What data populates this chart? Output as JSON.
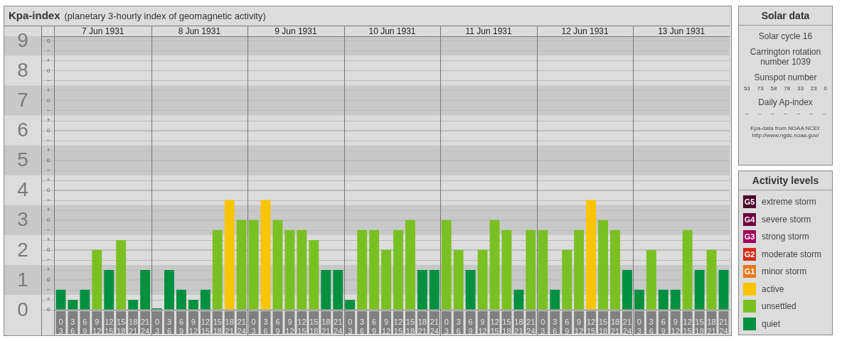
{
  "chart_data": {
    "type": "bar",
    "title": "Kpa-index",
    "subtitle": "(planetary 3-hourly index of geomagnetic activity)",
    "legend_title": "Activity levels",
    "legend": "right",
    "stacked": true,
    "grid": "y",
    "categories": [
      "0\n3",
      "3\n6",
      "6\n9",
      "9\n12",
      "12\n15",
      "15\n18",
      "18\n21",
      "21\n24",
      "0\n3",
      "3\n6",
      "6\n9",
      "9\n12",
      "12\n15",
      "15\n18",
      "18\n21",
      "21\n24",
      "0\n3",
      "3\n6",
      "6\n9",
      "9\n12",
      "12\n15",
      "15\n18",
      "18\n21",
      "21\n24",
      "0\n3",
      "3\n6",
      "6\n9",
      "9\n12",
      "12\n15",
      "15\n18",
      "18\n21",
      "21\n24",
      "0\n3",
      "3\n6",
      "6\n9",
      "9\n12",
      "12\n15",
      "15\n18",
      "18\n21",
      "21\n24",
      "0\n3",
      "3\n6",
      "6\n9",
      "9\n12",
      "12\n15",
      "15\n18",
      "18\n21",
      "21\n24",
      "0\n3",
      "3\n6",
      "6\n9",
      "9\n12",
      "12\n15",
      "15\n18",
      "18\n21",
      "21\n24"
    ],
    "ylim": [
      0,
      9.15
    ],
    "yticks": [
      0,
      1,
      2,
      3,
      4,
      5,
      6,
      7,
      8,
      9
    ],
    "bands": [
      {
        "axis": "y",
        "from": 0.5,
        "to": 1.5,
        "color": "#c8c8c8"
      },
      {
        "axis": "y",
        "from": 2.5,
        "to": 3.5,
        "color": "#c8c8c8"
      },
      {
        "axis": "y",
        "from": 4.5,
        "to": 5.5,
        "color": "#c8c8c8"
      },
      {
        "axis": "y",
        "from": 6.5,
        "to": 7.5,
        "color": "#c8c8c8"
      },
      {
        "axis": "y",
        "from": 8.5,
        "to": 9.15,
        "color": "#c8c8c8"
      }
    ],
    "annotations": [
      "7 Jun 1931",
      "8 Jun 1931",
      "9 Jun 1931",
      "10 Jun 1931",
      "11 Jun 1931",
      "12 Jun 1931",
      "13 Jun 1931",
      "Solar data",
      "Solar cycle 16",
      "Carrington rotation number 1039",
      "Sunspot number",
      "53 73 58 78 33 23 0",
      "Daily Ap-index",
      "-- -- -- -- -- -- --",
      "Kpa-data from NOAA NCEI: http://www.ngdc.noaa.gov/",
      "G5",
      "G4",
      "G3",
      "G2",
      "G1",
      "o",
      "+",
      "−",
      "o",
      "+",
      "−",
      "o",
      "+",
      "−",
      "o",
      "+",
      "−",
      "o",
      "+",
      "−",
      "o",
      "+",
      "−",
      "o",
      "+",
      "−",
      "o",
      "+",
      "−",
      "o",
      "+",
      "−",
      "o"
    ],
    "series": [
      {
        "name": "extreme storm",
        "color": "#4b0028",
        "values": [
          null,
          null,
          null,
          null,
          null,
          null,
          null,
          null,
          null,
          null,
          null,
          null,
          null,
          null,
          null,
          null,
          null,
          null,
          null,
          null,
          null,
          null,
          null,
          null,
          null,
          null,
          null,
          null,
          null,
          null,
          null,
          null,
          null,
          null,
          null,
          null,
          null,
          null,
          null,
          null,
          null,
          null,
          null,
          null,
          null,
          null,
          null,
          null,
          null,
          null,
          null,
          null,
          null,
          null,
          null,
          null
        ]
      },
      {
        "name": "severe storm",
        "color": "#6e0040",
        "values": [
          null,
          null,
          null,
          null,
          null,
          null,
          null,
          null,
          null,
          null,
          null,
          null,
          null,
          null,
          null,
          null,
          null,
          null,
          null,
          null,
          null,
          null,
          null,
          null,
          null,
          null,
          null,
          null,
          null,
          null,
          null,
          null,
          null,
          null,
          null,
          null,
          null,
          null,
          null,
          null,
          null,
          null,
          null,
          null,
          null,
          null,
          null,
          null,
          null,
          null,
          null,
          null,
          null,
          null,
          null,
          null
        ]
      },
      {
        "name": "strong storm",
        "color": "#a3005a",
        "values": [
          null,
          null,
          null,
          null,
          null,
          null,
          null,
          null,
          null,
          null,
          null,
          null,
          null,
          null,
          null,
          null,
          null,
          null,
          null,
          null,
          null,
          null,
          null,
          null,
          null,
          null,
          null,
          null,
          null,
          null,
          null,
          null,
          null,
          null,
          null,
          null,
          null,
          null,
          null,
          null,
          null,
          null,
          null,
          null,
          null,
          null,
          null,
          null,
          null,
          null,
          null,
          null,
          null,
          null,
          null,
          null
        ]
      },
      {
        "name": "moderate storm",
        "color": "#d42d1b",
        "values": [
          null,
          null,
          null,
          null,
          null,
          null,
          null,
          null,
          null,
          null,
          null,
          null,
          null,
          null,
          null,
          null,
          null,
          null,
          null,
          null,
          null,
          null,
          null,
          null,
          null,
          null,
          null,
          null,
          null,
          null,
          null,
          null,
          null,
          null,
          null,
          null,
          null,
          null,
          null,
          null,
          null,
          null,
          null,
          null,
          null,
          null,
          null,
          null,
          null,
          null,
          null,
          null,
          null,
          null,
          null,
          null
        ]
      },
      {
        "name": "minor storm",
        "color": "#e8781e",
        "values": [
          null,
          null,
          null,
          null,
          null,
          null,
          null,
          null,
          null,
          null,
          null,
          null,
          null,
          null,
          null,
          null,
          null,
          null,
          null,
          null,
          null,
          null,
          null,
          null,
          null,
          null,
          null,
          null,
          null,
          null,
          null,
          null,
          null,
          null,
          null,
          null,
          null,
          null,
          null,
          null,
          null,
          null,
          null,
          null,
          null,
          null,
          null,
          null,
          null,
          null,
          null,
          null,
          null,
          null,
          null,
          null
        ]
      },
      {
        "name": "active",
        "color": "#f9c400",
        "values": [
          null,
          null,
          null,
          null,
          null,
          null,
          null,
          null,
          null,
          null,
          null,
          null,
          null,
          null,
          3.67,
          null,
          null,
          3.67,
          null,
          null,
          null,
          null,
          null,
          null,
          null,
          null,
          null,
          null,
          null,
          null,
          null,
          null,
          null,
          null,
          null,
          null,
          null,
          null,
          null,
          null,
          null,
          null,
          null,
          null,
          3.67,
          null,
          null,
          null,
          null,
          null,
          null,
          null,
          null,
          null,
          null,
          null
        ]
      },
      {
        "name": "unsettled",
        "color": "#7ac022",
        "values": [
          null,
          null,
          null,
          2,
          null,
          2.33,
          null,
          null,
          null,
          null,
          null,
          null,
          null,
          2.67,
          null,
          3,
          3,
          null,
          3,
          2.67,
          2.67,
          2.33,
          null,
          null,
          null,
          2.67,
          2.67,
          2,
          2.67,
          3,
          null,
          null,
          3,
          2,
          null,
          2,
          3,
          2.67,
          null,
          2.67,
          2.67,
          null,
          2,
          2.67,
          null,
          3,
          2.67,
          null,
          null,
          2,
          null,
          null,
          2.67,
          null,
          2,
          null
        ]
      },
      {
        "name": "quiet",
        "color": "#00903f",
        "values": [
          0.67,
          0.33,
          0.67,
          null,
          1.33,
          null,
          0.33,
          1.33,
          0,
          1.33,
          0.67,
          0.33,
          0.67,
          null,
          null,
          null,
          null,
          null,
          null,
          null,
          null,
          null,
          1.33,
          1.33,
          0.33,
          null,
          null,
          null,
          null,
          null,
          1.33,
          1.33,
          null,
          null,
          1.33,
          null,
          null,
          null,
          0.67,
          null,
          null,
          0.67,
          null,
          null,
          null,
          null,
          null,
          1.33,
          0.67,
          null,
          0.67,
          0.67,
          null,
          1.33,
          null,
          1.33
        ]
      }
    ]
  }
}
